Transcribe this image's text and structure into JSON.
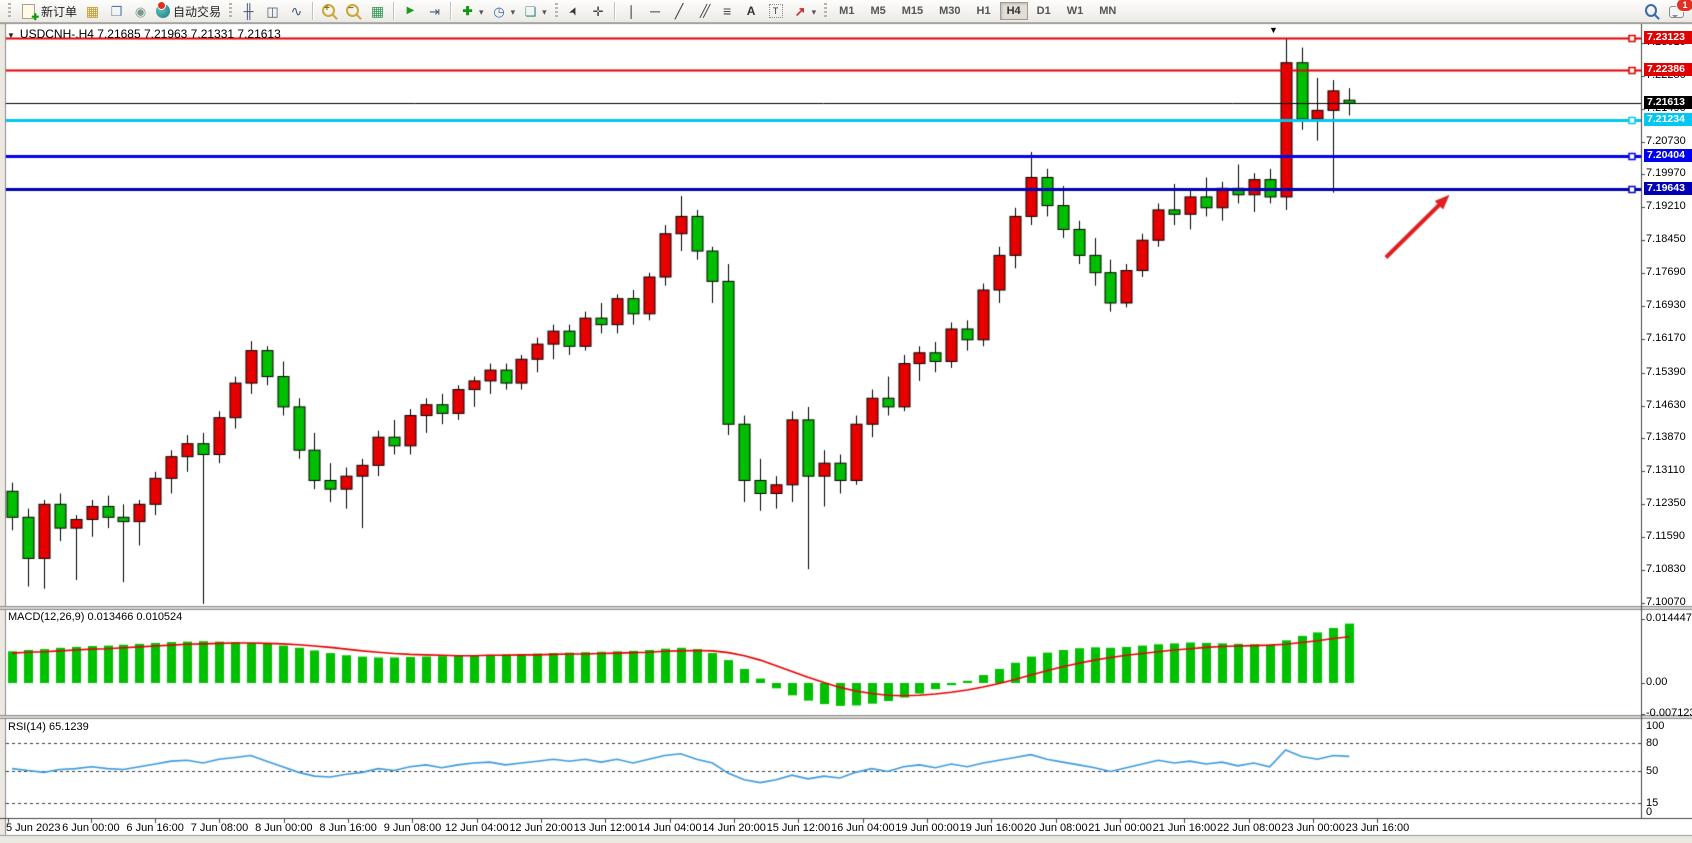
{
  "toolbar": {
    "buttons": {
      "new_order": "新订单",
      "auto_trading": "自动交易"
    },
    "icon_names": [
      "new-order",
      "profiles",
      "open-window",
      "signals",
      "auto-trading",
      "bar-chart",
      "candlestick-chart",
      "line-chart",
      "zoom-in",
      "zoom-out",
      "tile-windows",
      "auto-scroll",
      "chart-shift",
      "indicators",
      "periods",
      "templates",
      "cursor",
      "crosshair",
      "vertical-line",
      "horizontal-line",
      "trendline",
      "equidistant-channel",
      "fibonacci",
      "text",
      "text-label",
      "arrows",
      "search",
      "comments"
    ],
    "timeframes": [
      "M1",
      "M5",
      "M15",
      "M30",
      "H1",
      "H4",
      "D1",
      "W1",
      "MN"
    ],
    "active_timeframe": "H4",
    "notification_count": "1"
  },
  "chart": {
    "title": "USDCNH-.H4 7.21685 7.21963 7.21331 7.21613",
    "symbol": "USDCNH-",
    "period": "H4",
    "open": "7.21685",
    "high": "7.21963",
    "low": "7.21331",
    "close": "7.21613"
  },
  "indicators": {
    "macd": {
      "label": "MACD(12,26,9) 0.013466 0.010524"
    },
    "rsi": {
      "label": "RSI(14) 65.1239"
    }
  },
  "chart_data": {
    "type": "candlestick",
    "symbol": "USDCNH-",
    "timeframe": "H4",
    "up_color": "#E80000",
    "down_color": "#00BE00",
    "price_axis": {
      "min": 7.1007,
      "max": 7.23123,
      "ticks": [
        "7.23010",
        "7.22250",
        "7.21490",
        "7.20730",
        "7.19970",
        "7.19210",
        "7.18450",
        "7.17690",
        "7.16930",
        "7.16170",
        "7.15390",
        "7.14630",
        "7.13870",
        "7.13110",
        "7.12350",
        "7.11590",
        "7.10830",
        "7.10070"
      ]
    },
    "time_axis": {
      "labels": [
        "5 Jun 2023",
        "6 Jun 00:00",
        "6 Jun 16:00",
        "7 Jun 08:00",
        "8 Jun 00:00",
        "8 Jun 16:00",
        "9 Jun 08:00",
        "12 Jun 04:00",
        "12 Jun 20:00",
        "13 Jun 12:00",
        "14 Jun 04:00",
        "14 Jun 20:00",
        "15 Jun 12:00",
        "16 Jun 04:00",
        "19 Jun 00:00",
        "19 Jun 16:00",
        "20 Jun 08:00",
        "21 Jun 00:00",
        "21 Jun 16:00",
        "22 Jun 08:00",
        "23 Jun 00:00",
        "23 Jun 16:00"
      ]
    },
    "candles": [
      [
        7.1265,
        7.1285,
        7.1175,
        7.1205
      ],
      [
        7.1205,
        7.1225,
        7.1045,
        7.111
      ],
      [
        7.111,
        7.1245,
        7.104,
        7.1235
      ],
      [
        7.1235,
        7.126,
        7.115,
        7.118
      ],
      [
        7.118,
        7.121,
        7.106,
        7.12
      ],
      [
        7.12,
        7.1245,
        7.116,
        7.123
      ],
      [
        7.123,
        7.1255,
        7.118,
        7.1205
      ],
      [
        7.1205,
        7.1235,
        7.1055,
        7.1195
      ],
      [
        7.1195,
        7.1245,
        7.114,
        7.1235
      ],
      [
        7.1235,
        7.131,
        7.121,
        7.1295
      ],
      [
        7.1295,
        7.136,
        7.126,
        7.1345
      ],
      [
        7.1345,
        7.1395,
        7.131,
        7.1375
      ],
      [
        7.1375,
        7.14,
        7.1005,
        7.135
      ],
      [
        7.135,
        7.145,
        7.133,
        7.1435
      ],
      [
        7.1435,
        7.153,
        7.141,
        7.1515
      ],
      [
        7.1515,
        7.1612,
        7.149,
        7.159
      ],
      [
        7.159,
        7.16,
        7.151,
        7.153
      ],
      [
        7.153,
        7.1565,
        7.144,
        7.146
      ],
      [
        7.146,
        7.148,
        7.134,
        7.136
      ],
      [
        7.136,
        7.14,
        7.127,
        7.129
      ],
      [
        7.129,
        7.133,
        7.124,
        7.127
      ],
      [
        7.127,
        7.132,
        7.1225,
        7.13
      ],
      [
        7.13,
        7.134,
        7.118,
        7.1325
      ],
      [
        7.1325,
        7.1405,
        7.13,
        7.139
      ],
      [
        7.139,
        7.143,
        7.135,
        7.137
      ],
      [
        7.137,
        7.1455,
        7.135,
        7.144
      ],
      [
        7.144,
        7.148,
        7.14,
        7.1465
      ],
      [
        7.1465,
        7.149,
        7.142,
        7.1445
      ],
      [
        7.1445,
        7.151,
        7.143,
        7.15
      ],
      [
        7.15,
        7.153,
        7.146,
        7.152
      ],
      [
        7.152,
        7.156,
        7.149,
        7.1545
      ],
      [
        7.1545,
        7.156,
        7.15,
        7.1515
      ],
      [
        7.1515,
        7.158,
        7.15,
        7.157
      ],
      [
        7.157,
        7.162,
        7.154,
        7.1605
      ],
      [
        7.1605,
        7.165,
        7.157,
        7.1635
      ],
      [
        7.1635,
        7.165,
        7.158,
        7.16
      ],
      [
        7.16,
        7.168,
        7.159,
        7.1665
      ],
      [
        7.1665,
        7.17,
        7.163,
        7.165
      ],
      [
        7.165,
        7.172,
        7.163,
        7.171
      ],
      [
        7.171,
        7.173,
        7.165,
        7.1675
      ],
      [
        7.1675,
        7.177,
        7.166,
        7.176
      ],
      [
        7.176,
        7.188,
        7.174,
        7.186
      ],
      [
        7.186,
        7.1947,
        7.182,
        7.19
      ],
      [
        7.19,
        7.1915,
        7.18,
        7.182
      ],
      [
        7.182,
        7.183,
        7.17,
        7.175
      ],
      [
        7.175,
        7.179,
        7.1395,
        7.142
      ],
      [
        7.142,
        7.144,
        7.124,
        7.129
      ],
      [
        7.129,
        7.134,
        7.122,
        7.126
      ],
      [
        7.126,
        7.13,
        7.1225,
        7.128
      ],
      [
        7.128,
        7.145,
        7.124,
        7.143
      ],
      [
        7.143,
        7.146,
        7.1085,
        7.13
      ],
      [
        7.13,
        7.136,
        7.123,
        7.133
      ],
      [
        7.133,
        7.135,
        7.126,
        7.129
      ],
      [
        7.129,
        7.144,
        7.128,
        7.142
      ],
      [
        7.142,
        7.15,
        7.139,
        7.148
      ],
      [
        7.148,
        7.153,
        7.144,
        7.146
      ],
      [
        7.146,
        7.158,
        7.145,
        7.156
      ],
      [
        7.156,
        7.16,
        7.152,
        7.1585
      ],
      [
        7.1585,
        7.161,
        7.154,
        7.1565
      ],
      [
        7.1565,
        7.1655,
        7.155,
        7.164
      ],
      [
        7.164,
        7.166,
        7.159,
        7.1615
      ],
      [
        7.1615,
        7.1745,
        7.16,
        7.173
      ],
      [
        7.173,
        7.183,
        7.17,
        7.181
      ],
      [
        7.181,
        7.192,
        7.178,
        7.19
      ],
      [
        7.19,
        7.2049,
        7.188,
        7.199
      ],
      [
        7.199,
        7.201,
        7.19,
        7.1925
      ],
      [
        7.1925,
        7.197,
        7.185,
        7.187
      ],
      [
        7.187,
        7.189,
        7.179,
        7.181
      ],
      [
        7.181,
        7.185,
        7.174,
        7.177
      ],
      [
        7.177,
        7.18,
        7.168,
        7.17
      ],
      [
        7.17,
        7.179,
        7.169,
        7.1775
      ],
      [
        7.1775,
        7.186,
        7.176,
        7.1845
      ],
      [
        7.1845,
        7.193,
        7.183,
        7.1915
      ],
      [
        7.1915,
        7.1975,
        7.188,
        7.1905
      ],
      [
        7.1905,
        7.196,
        7.187,
        7.1945
      ],
      [
        7.1945,
        7.199,
        7.19,
        7.192
      ],
      [
        7.192,
        7.198,
        7.189,
        7.1965
      ],
      [
        7.1965,
        7.202,
        7.193,
        7.195
      ],
      [
        7.195,
        7.2,
        7.191,
        7.1985
      ],
      [
        7.1985,
        7.201,
        7.193,
        7.1945
      ],
      [
        7.1945,
        7.2312,
        7.1915,
        7.2255
      ],
      [
        7.2255,
        7.229,
        7.21,
        7.2125
      ],
      [
        7.2125,
        7.222,
        7.2075,
        7.2145
      ],
      [
        7.2145,
        7.2215,
        7.1955,
        7.219
      ],
      [
        7.21685,
        7.21963,
        7.21331,
        7.21613
      ]
    ],
    "price_lines": [
      {
        "price": 7.23123,
        "label": "7.23123",
        "color": "#E00000",
        "width": 2,
        "role": "resistance"
      },
      {
        "price": 7.22386,
        "label": "7.22386",
        "color": "#E00000",
        "width": 2,
        "role": "resistance"
      },
      {
        "price": 7.21234,
        "label": "7.21234",
        "color": "#00C8F0",
        "width": 3,
        "role": "level"
      },
      {
        "price": 7.20404,
        "label": "7.20404",
        "color": "#0000F0",
        "width": 3,
        "role": "support"
      },
      {
        "price": 7.19643,
        "label": "7.19643",
        "color": "#0000B4",
        "width": 3,
        "role": "support"
      },
      {
        "price": 7.21613,
        "label": "7.21613",
        "color": "#000000",
        "width": 1,
        "role": "current-price"
      }
    ],
    "macd": {
      "name": "MACD",
      "params": [
        12,
        26,
        9
      ],
      "value": 0.013466,
      "signal_value": 0.010524,
      "scale": {
        "max": 0.014447,
        "zero": 0.0,
        "min": -0.007123
      },
      "scale_labels": [
        "0.014447",
        "0.00",
        "-0.007123"
      ],
      "histogram_color": "#00C000",
      "signal_color": "#E80000",
      "histogram": [
        0.0072,
        0.0075,
        0.0077,
        0.008,
        0.0082,
        0.0084,
        0.0085,
        0.0087,
        0.0089,
        0.0091,
        0.0093,
        0.0094,
        0.0095,
        0.0094,
        0.0093,
        0.0091,
        0.0089,
        0.0085,
        0.008,
        0.0074,
        0.0068,
        0.0063,
        0.006,
        0.0058,
        0.0058,
        0.0059,
        0.006,
        0.0061,
        0.0062,
        0.0063,
        0.0064,
        0.0065,
        0.0066,
        0.0067,
        0.0068,
        0.0069,
        0.007,
        0.0071,
        0.0072,
        0.0073,
        0.0075,
        0.0078,
        0.008,
        0.0077,
        0.0068,
        0.0052,
        0.0032,
        0.001,
        -0.0012,
        -0.0028,
        -0.004,
        -0.0048,
        -0.0052,
        -0.0051,
        -0.0047,
        -0.0041,
        -0.0033,
        -0.0024,
        -0.0014,
        -0.0005,
        0.0005,
        0.0018,
        0.0032,
        0.0046,
        0.006,
        0.0069,
        0.0075,
        0.0079,
        0.0081,
        0.008,
        0.0082,
        0.0085,
        0.0088,
        0.009,
        0.0092,
        0.0091,
        0.009,
        0.0089,
        0.0088,
        0.0087,
        0.0097,
        0.0107,
        0.0115,
        0.0125,
        0.0135
      ],
      "signal": [
        0.0068,
        0.007,
        0.0071,
        0.0073,
        0.0075,
        0.0077,
        0.0078,
        0.008,
        0.0082,
        0.0084,
        0.0086,
        0.0088,
        0.0089,
        0.009,
        0.0091,
        0.0091,
        0.009,
        0.0089,
        0.0087,
        0.0084,
        0.0081,
        0.0077,
        0.0073,
        0.007,
        0.0067,
        0.0065,
        0.0064,
        0.0063,
        0.0062,
        0.0062,
        0.0063,
        0.0063,
        0.0064,
        0.0064,
        0.0065,
        0.0066,
        0.0066,
        0.0067,
        0.0068,
        0.0069,
        0.007,
        0.0072,
        0.0073,
        0.0074,
        0.0073,
        0.0069,
        0.0062,
        0.0052,
        0.0039,
        0.0026,
        0.0013,
        0.0001,
        -0.001,
        -0.0018,
        -0.0024,
        -0.0028,
        -0.0029,
        -0.0028,
        -0.0025,
        -0.0021,
        -0.0016,
        -0.0009,
        -0.0001,
        0.0008,
        0.0018,
        0.0028,
        0.0037,
        0.0045,
        0.0052,
        0.0058,
        0.0063,
        0.0067,
        0.0071,
        0.0075,
        0.0078,
        0.0081,
        0.0083,
        0.0084,
        0.0085,
        0.0086,
        0.0088,
        0.0092,
        0.0096,
        0.0101,
        0.0105
      ]
    },
    "rsi": {
      "name": "RSI",
      "period": 14,
      "value": 65.1239,
      "levels": [
        80,
        50,
        15
      ],
      "scale_labels": [
        "100",
        "80",
        "50",
        "15",
        "0"
      ],
      "color": "#3E9BDD",
      "values": [
        52,
        50,
        48,
        51,
        52,
        54,
        52,
        51,
        54,
        57,
        60,
        61,
        58,
        62,
        64,
        66,
        60,
        54,
        48,
        44,
        43,
        46,
        48,
        52,
        50,
        54,
        56,
        53,
        56,
        58,
        59,
        56,
        58,
        60,
        62,
        60,
        62,
        59,
        62,
        58,
        62,
        66,
        68,
        62,
        58,
        47,
        40,
        37,
        40,
        45,
        41,
        44,
        42,
        48,
        52,
        49,
        54,
        56,
        53,
        57,
        54,
        58,
        61,
        64,
        67,
        62,
        59,
        56,
        53,
        49,
        53,
        57,
        61,
        58,
        60,
        57,
        59,
        55,
        58,
        54,
        72,
        65,
        62,
        66,
        65.1
      ]
    },
    "annotations": [
      {
        "type": "trend-arrow",
        "color": "#E02020",
        "from": {
          "bar": 86.3,
          "price": 7.1805
        },
        "to": {
          "bar": 90.3,
          "price": 7.195
        }
      }
    ]
  }
}
